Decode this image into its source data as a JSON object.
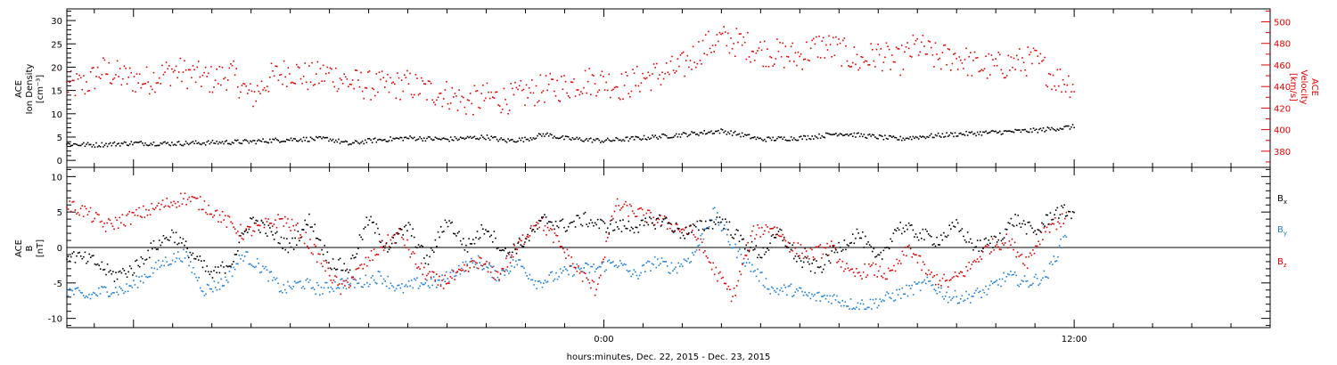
{
  "figure": {
    "xlabel": "hours:minutes, Dec. 22, 2015 - Dec. 23, 2015"
  },
  "colors": {
    "black": "#000000",
    "red": "#e00000",
    "blue": "#1f7fd6",
    "axis": "#000000"
  },
  "chart_data": [
    {
      "type": "scatter",
      "panel": "top",
      "ylabel_lines": [
        "ACE",
        "Ion Density",
        "[cm⁻³]"
      ],
      "right_ylabel_lines": [
        "ACE",
        "Velocity",
        "[km/s]"
      ],
      "x_unit": "hours from Dec. 22, 2015 0:00",
      "xlim": [
        10.3,
        41.0
      ],
      "ylim": [
        -1.5,
        32.5
      ],
      "y_ticks": [
        0,
        5,
        10,
        15,
        20,
        25,
        30
      ],
      "right_ylim": [
        365,
        512
      ],
      "right_y_ticks": [
        380,
        400,
        420,
        440,
        460,
        480,
        500
      ],
      "x_tick_labels": [
        {
          "hour": 24,
          "label": "0:00"
        },
        {
          "hour": 36,
          "label": "12:00"
        }
      ],
      "series": [
        {
          "axis": "left",
          "color_key": "black",
          "x": [
            10.3,
            11.0,
            12.0,
            13.0,
            14.0,
            15.0,
            16.0,
            17.0,
            17.5,
            18.0,
            19.0,
            20.0,
            21.0,
            21.5,
            22.0,
            22.5,
            23.0,
            24.0,
            25.0,
            26.0,
            27.0,
            27.5,
            28.0,
            29.0,
            29.5,
            30.0,
            31.0,
            31.5,
            32.0,
            33.0,
            34.0,
            35.0,
            36.0
          ],
          "values": [
            3.5,
            3.3,
            3.7,
            3.6,
            3.8,
            4.0,
            4.5,
            4.6,
            3.5,
            4.2,
            4.8,
            4.5,
            5.0,
            4.2,
            4.5,
            5.6,
            4.7,
            4.2,
            4.8,
            5.5,
            6.3,
            5.5,
            4.5,
            4.8,
            5.2,
            5.8,
            5.0,
            4.6,
            5.0,
            5.6,
            6.0,
            6.4,
            7.2
          ]
        },
        {
          "axis": "right",
          "color_key": "red",
          "x": [
            10.3,
            10.8,
            11.2,
            11.8,
            12.3,
            13.0,
            13.6,
            14.0,
            14.5,
            15.0,
            15.5,
            16.0,
            16.5,
            17.0,
            17.5,
            18.0,
            18.5,
            19.0,
            19.5,
            20.0,
            20.5,
            21.0,
            21.5,
            22.0,
            22.5,
            23.0,
            23.5,
            24.0,
            24.5,
            25.0,
            25.5,
            26.0,
            26.5,
            27.0,
            27.5,
            28.0,
            28.5,
            29.0,
            29.5,
            30.0,
            30.5,
            31.0,
            31.5,
            32.0,
            32.5,
            33.0,
            33.5,
            34.0,
            34.5,
            35.0,
            35.5,
            36.0
          ],
          "values": [
            440,
            442,
            455,
            448,
            445,
            455,
            450,
            446,
            452,
            430,
            448,
            455,
            448,
            452,
            444,
            441,
            440,
            442,
            436,
            433,
            425,
            430,
            428,
            433,
            438,
            440,
            445,
            445,
            440,
            448,
            452,
            458,
            475,
            484,
            480,
            473,
            470,
            468,
            478,
            474,
            463,
            470,
            462,
            478,
            466,
            468,
            459,
            458,
            462,
            464,
            448,
            442
          ]
        }
      ]
    },
    {
      "type": "scatter",
      "panel": "bottom",
      "ylabel_lines": [
        "ACE",
        "B",
        "[nT]"
      ],
      "x_unit": "hours from Dec. 22, 2015 0:00",
      "xlim": [
        10.3,
        41.0
      ],
      "ylim": [
        -11.3,
        11.3
      ],
      "y_ticks": [
        -10,
        -5,
        0,
        5,
        10
      ],
      "zero_line": true,
      "legend": [
        "B",
        "B",
        "B"
      ],
      "legend_subscripts": [
        "x",
        "y",
        "z"
      ],
      "legend_placement": "right",
      "series": [
        {
          "name": "Bx",
          "color_key": "black",
          "x": [
            10.3,
            11.0,
            11.5,
            12.0,
            12.5,
            13.0,
            13.5,
            14.0,
            14.5,
            15.0,
            15.5,
            16.0,
            16.5,
            17.0,
            17.5,
            18.0,
            18.5,
            19.0,
            19.5,
            20.0,
            20.5,
            21.0,
            21.5,
            22.0,
            22.5,
            23.0,
            23.5,
            24.0,
            24.5,
            25.0,
            25.5,
            26.0,
            26.5,
            27.0,
            27.5,
            28.0,
            28.5,
            29.0,
            29.5,
            30.0,
            30.5,
            31.0,
            31.5,
            32.0,
            32.5,
            33.0,
            33.5,
            34.0,
            34.5,
            35.0,
            35.5,
            36.0
          ],
          "values": [
            -1,
            -2,
            -4,
            -3,
            0,
            2,
            -1,
            -4,
            -2,
            4,
            2,
            0,
            4,
            -2,
            -3,
            4,
            0,
            3,
            -2,
            4,
            0,
            3,
            -1,
            1,
            4,
            3,
            4,
            3,
            3,
            3,
            4,
            2,
            3,
            4,
            1,
            -1,
            2,
            -2,
            -3,
            0,
            2,
            -2,
            3,
            2,
            1,
            3,
            0,
            1,
            4,
            2,
            5,
            5
          ]
        },
        {
          "name": "By",
          "color_key": "blue",
          "x": [
            10.3,
            10.8,
            11.3,
            11.8,
            12.3,
            12.8,
            13.3,
            13.8,
            14.3,
            14.8,
            15.3,
            15.8,
            16.3,
            16.8,
            17.3,
            17.8,
            18.3,
            18.8,
            19.3,
            19.8,
            20.3,
            20.8,
            21.3,
            21.8,
            22.3,
            22.8,
            23.3,
            23.8,
            24.3,
            24.8,
            25.3,
            25.8,
            26.3,
            26.8,
            27.3,
            27.8,
            28.3,
            28.8,
            29.3,
            29.8,
            30.3,
            30.8,
            31.3,
            31.8,
            32.3,
            32.8,
            33.3,
            33.8,
            34.3,
            34.8,
            35.3,
            35.8
          ],
          "values": [
            -6,
            -7,
            -6,
            -6,
            -4,
            -2,
            -1,
            -6,
            -5,
            -1,
            -3,
            -6,
            -5,
            -6,
            -5,
            -5,
            -4,
            -6,
            -5,
            -5,
            -3,
            -2,
            -4,
            -2,
            -5,
            -4,
            -3,
            -3,
            -2,
            -4,
            -2,
            -3,
            -1,
            5,
            0,
            -3,
            -6,
            -6,
            -7,
            -7,
            -8,
            -8,
            -7,
            -6,
            -5,
            -7,
            -7,
            -6,
            -4,
            -5,
            -4,
            2
          ]
        },
        {
          "name": "Bz",
          "color_key": "red",
          "x": [
            10.3,
            10.8,
            11.3,
            11.8,
            12.3,
            12.8,
            13.3,
            13.8,
            14.3,
            14.8,
            15.3,
            15.8,
            16.3,
            16.8,
            17.3,
            17.8,
            18.3,
            18.8,
            19.3,
            19.8,
            20.3,
            20.8,
            21.3,
            21.8,
            22.3,
            22.8,
            23.3,
            23.8,
            24.3,
            24.8,
            25.3,
            25.8,
            26.3,
            26.8,
            27.3,
            27.8,
            28.3,
            28.8,
            29.3,
            29.8,
            30.3,
            30.8,
            31.3,
            31.8,
            32.3,
            32.8,
            33.3,
            33.8,
            34.3,
            34.8,
            35.3,
            35.8
          ],
          "values": [
            6,
            5,
            3,
            4,
            5,
            6,
            7,
            6,
            4,
            2,
            3,
            4,
            2,
            -2,
            -6,
            -3,
            0,
            2,
            -3,
            -5,
            -4,
            -2,
            -4,
            0,
            4,
            1,
            -3,
            -6,
            6,
            5,
            4,
            3,
            2,
            -3,
            -7,
            2,
            3,
            0,
            -1,
            0,
            -4,
            -3,
            -4,
            0,
            -4,
            -5,
            -3,
            0,
            1,
            -2,
            3,
            4
          ]
        }
      ]
    }
  ]
}
